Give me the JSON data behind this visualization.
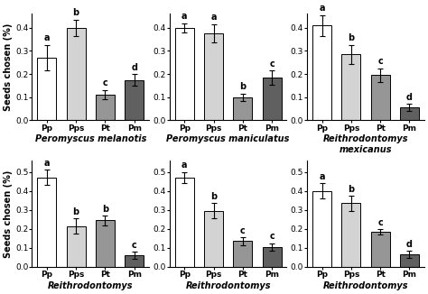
{
  "subplots": [
    {
      "title": "Peromyscus melanotis",
      "title_lines": [
        "Peromyscus melanotis"
      ],
      "ylim": [
        0,
        0.46
      ],
      "yticks": [
        0.0,
        0.1,
        0.2,
        0.3,
        0.4
      ],
      "ylabel": "Seeds chosen (%)",
      "bars": [
        0.27,
        0.4,
        0.11,
        0.175
      ],
      "errors": [
        0.055,
        0.035,
        0.02,
        0.025
      ],
      "letters": [
        "a",
        "b",
        "c",
        "d"
      ],
      "colors": [
        "#ffffff",
        "#d3d3d3",
        "#969696",
        "#606060"
      ]
    },
    {
      "title": "Peromyscus maniculatus",
      "title_lines": [
        "Peromyscus maniculatus"
      ],
      "ylim": [
        0,
        0.46
      ],
      "yticks": [
        0.0,
        0.1,
        0.2,
        0.3,
        0.4
      ],
      "ylabel": "",
      "bars": [
        0.4,
        0.375,
        0.1,
        0.185
      ],
      "errors": [
        0.02,
        0.04,
        0.015,
        0.03
      ],
      "letters": [
        "a",
        "a",
        "b",
        "c"
      ],
      "colors": [
        "#ffffff",
        "#d3d3d3",
        "#969696",
        "#606060"
      ]
    },
    {
      "title": "Reithrodontomys mexicanus",
      "title_lines": [
        "Reithrodontomys",
        "mexicanus"
      ],
      "ylim": [
        0,
        0.46
      ],
      "yticks": [
        0.0,
        0.1,
        0.2,
        0.3,
        0.4
      ],
      "ylabel": "",
      "bars": [
        0.41,
        0.285,
        0.195,
        0.055
      ],
      "errors": [
        0.045,
        0.04,
        0.03,
        0.015
      ],
      "letters": [
        "a",
        "b",
        "c",
        "d"
      ],
      "colors": [
        "#ffffff",
        "#d3d3d3",
        "#969696",
        "#606060"
      ]
    },
    {
      "title": "Reithrodontomys",
      "title_lines": [
        "Reithrodontomys"
      ],
      "ylim": [
        0,
        0.56
      ],
      "yticks": [
        0.0,
        0.1,
        0.2,
        0.3,
        0.4,
        0.5
      ],
      "ylabel": "Seeds chosen (%)",
      "bars": [
        0.47,
        0.215,
        0.245,
        0.06
      ],
      "errors": [
        0.04,
        0.04,
        0.025,
        0.02
      ],
      "letters": [
        "a",
        "b",
        "b",
        "c"
      ],
      "colors": [
        "#ffffff",
        "#d3d3d3",
        "#969696",
        "#606060"
      ]
    },
    {
      "title": "Reithrodontomys",
      "title_lines": [
        "Reithrodontomys"
      ],
      "ylim": [
        0,
        0.56
      ],
      "yticks": [
        0.0,
        0.1,
        0.2,
        0.3,
        0.4,
        0.5
      ],
      "ylabel": "",
      "bars": [
        0.47,
        0.295,
        0.135,
        0.105
      ],
      "errors": [
        0.03,
        0.04,
        0.02,
        0.02
      ],
      "letters": [
        "a",
        "b",
        "c",
        "c"
      ],
      "colors": [
        "#ffffff",
        "#d3d3d3",
        "#969696",
        "#606060"
      ]
    },
    {
      "title": "Reithrodontomys",
      "title_lines": [
        "Reithrodontomys"
      ],
      "ylim": [
        0,
        0.56
      ],
      "yticks": [
        0.0,
        0.1,
        0.2,
        0.3,
        0.4,
        0.5
      ],
      "ylabel": "",
      "bars": [
        0.4,
        0.335,
        0.185,
        0.065
      ],
      "errors": [
        0.04,
        0.04,
        0.015,
        0.02
      ],
      "letters": [
        "a",
        "b",
        "c",
        "d"
      ],
      "colors": [
        "#ffffff",
        "#d3d3d3",
        "#969696",
        "#606060"
      ]
    }
  ],
  "categories": [
    "Pp",
    "Pps",
    "Pt",
    "Pm"
  ],
  "letter_fontsize": 7,
  "tick_fontsize": 6.5,
  "label_fontsize": 7,
  "title_fontsize": 7,
  "bar_width": 0.65,
  "background_color": "#ffffff",
  "border_color": "#e8e8e8"
}
